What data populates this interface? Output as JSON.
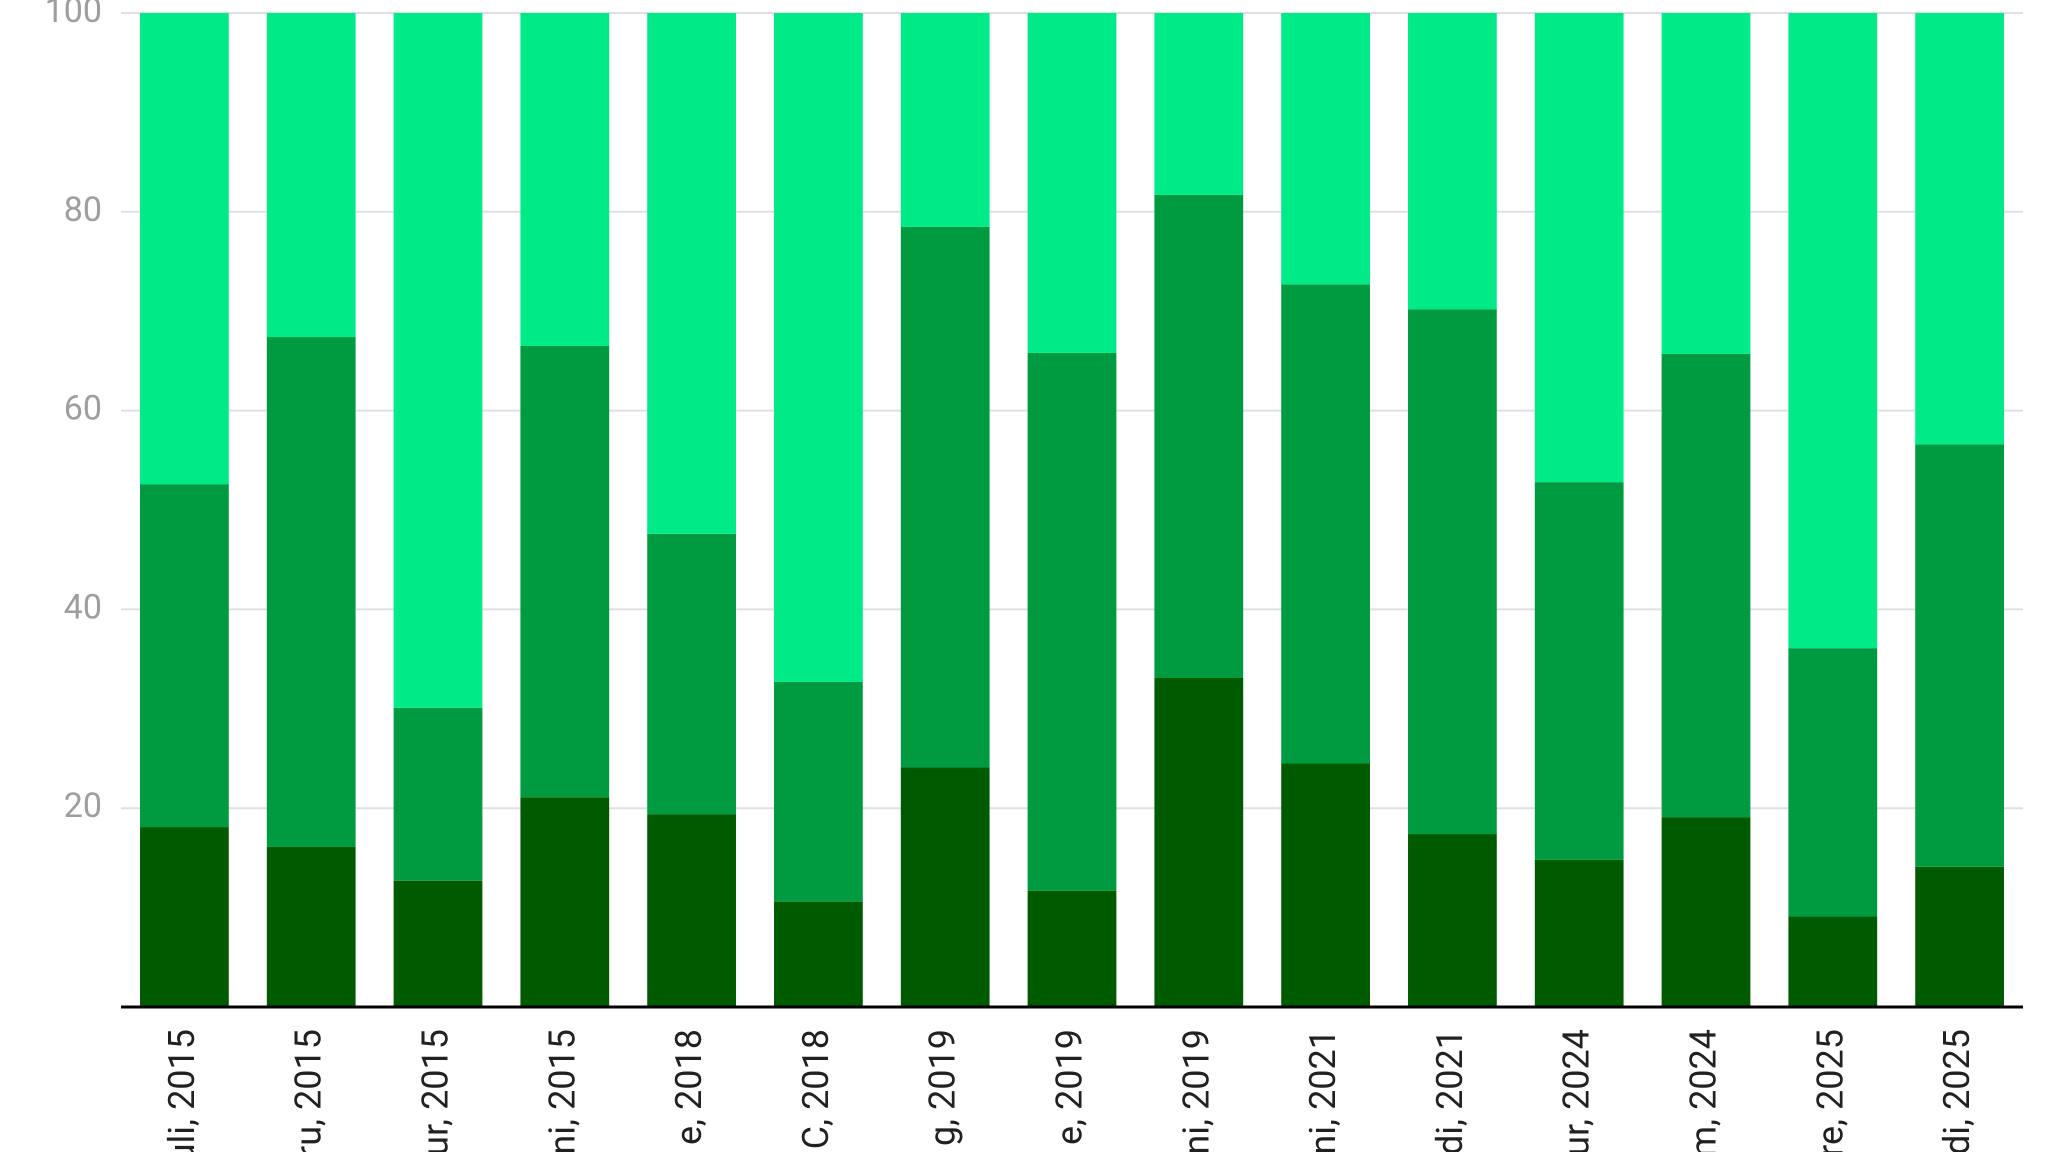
{
  "chart_data": {
    "type": "stacked_bar",
    "categories": [
      "uli, 2015",
      "ru, 2015",
      "ur, 2015",
      "ni, 2015",
      "e, 2018",
      "C, 2018",
      "g, 2019",
      "e, 2019",
      "ni, 2019",
      "ni, 2021",
      "di, 2021",
      "ur, 2024",
      "m, 2024",
      "re, 2025",
      "di, 2025"
    ],
    "series": [
      {
        "color": "#005a00",
        "values": [
          18.1,
          16.1,
          12.7,
          21.1,
          19.4,
          10.6,
          24.1,
          11.7,
          33.1,
          24.5,
          17.4,
          14.8,
          19.1,
          9.1,
          14.1
        ]
      },
      {
        "color": "#009a40",
        "values": [
          34.5,
          51.3,
          17.4,
          45.4,
          28.2,
          22.1,
          54.4,
          54.1,
          48.6,
          48.2,
          52.8,
          38.0,
          46.6,
          27.0,
          42.5
        ]
      },
      {
        "color": "#00eb88",
        "values": [
          47.4,
          32.6,
          69.9,
          33.5,
          52.4,
          67.3,
          21.5,
          34.2,
          18.3,
          27.3,
          29.8,
          47.2,
          34.3,
          63.9,
          43.4
        ]
      }
    ],
    "ylim": [
      0,
      100
    ],
    "yticks": [
      20,
      40,
      60,
      80,
      100
    ],
    "grid": true
  }
}
